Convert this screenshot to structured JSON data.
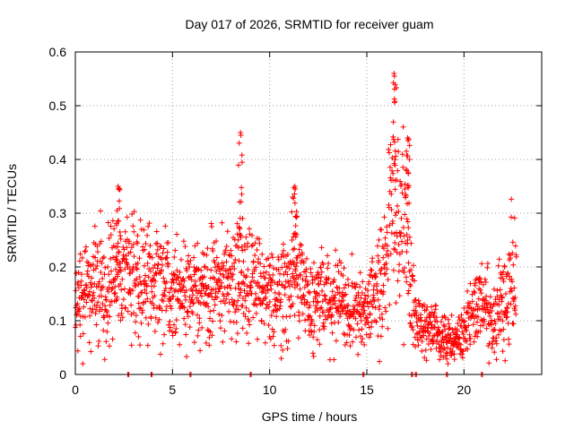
{
  "chart_data": {
    "type": "scatter",
    "title": "Day 017 of 2026, SRMTID for receiver guam",
    "xlabel": "GPS time / hours",
    "ylabel": "SRMTID / TECUs",
    "xlim": [
      0,
      24
    ],
    "ylim": [
      0,
      0.6
    ],
    "xticks": [
      0,
      5,
      10,
      15,
      20
    ],
    "xtick_labels": [
      "0",
      "5",
      "10",
      "15",
      "20"
    ],
    "yticks": [
      0,
      0.1,
      0.2,
      0.3,
      0.4,
      0.5,
      0.6
    ],
    "ytick_labels": [
      "0",
      "0.1",
      "0.2",
      "0.3",
      "0.4",
      "0.5",
      "0.6"
    ],
    "grid": true,
    "marker": "+",
    "color": "#ff0000",
    "series": [
      {
        "name": "SRMTID",
        "approx_envelope": {
          "x": [
            0,
            0.5,
            1,
            2,
            2.3,
            3,
            4,
            5,
            6,
            7,
            8,
            8.5,
            9,
            10,
            11,
            11.3,
            12,
            13,
            14,
            15,
            15.5,
            16,
            16.3,
            16.5,
            16.8,
            17,
            17.3,
            17.5,
            18,
            18.5,
            19,
            19.5,
            20,
            20.5,
            21,
            21.5,
            22,
            22.5,
            22.7
          ],
          "y": [
            0.13,
            0.17,
            0.16,
            0.17,
            0.2,
            0.19,
            0.17,
            0.16,
            0.15,
            0.17,
            0.17,
            0.19,
            0.18,
            0.14,
            0.17,
            0.2,
            0.14,
            0.13,
            0.14,
            0.12,
            0.16,
            0.22,
            0.32,
            0.38,
            0.3,
            0.25,
            0.16,
            0.1,
            0.08,
            0.09,
            0.07,
            0.06,
            0.08,
            0.12,
            0.13,
            0.09,
            0.14,
            0.19,
            0.18
          ]
        },
        "peaks": [
          {
            "x": 2.2,
            "y": 0.35
          },
          {
            "x": 8.5,
            "y": 0.45
          },
          {
            "x": 11.3,
            "y": 0.35
          },
          {
            "x": 16.4,
            "y": 0.56
          },
          {
            "x": 17.1,
            "y": 0.44
          }
        ],
        "zero_values_x": [
          2.7,
          3.9,
          5.9,
          9.0,
          14.8,
          17.3,
          17.5,
          19.1,
          20.9
        ]
      }
    ]
  }
}
